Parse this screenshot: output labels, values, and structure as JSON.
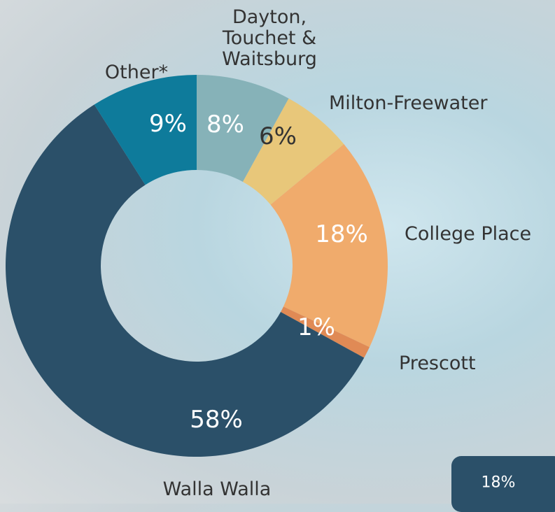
{
  "chart_data": {
    "type": "donut",
    "categories": [
      "Dayton, Touchet & Waitsburg",
      "Milton-Freewater",
      "College Place",
      "Prescott",
      "Walla Walla",
      "Other*"
    ],
    "values": [
      8,
      6,
      18,
      1,
      58,
      9
    ],
    "value_labels": [
      "8%",
      "6%",
      "18%",
      "1%",
      "58%",
      "9%"
    ],
    "colors": [
      "#86b2b8",
      "#e8c77a",
      "#f0ab6c",
      "#e08a55",
      "#2b5069",
      "#0e7b9b"
    ]
  },
  "badge": "18%"
}
